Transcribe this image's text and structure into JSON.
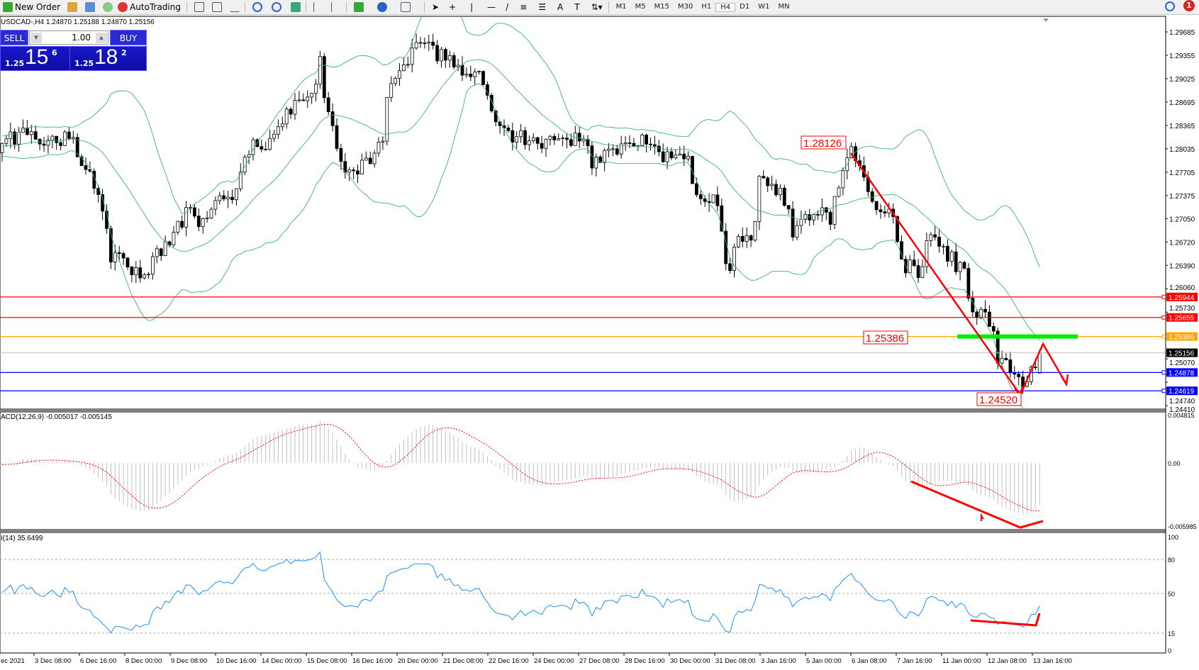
{
  "toolbar": {
    "new_order": "New Order",
    "autotrading": "AutoTrading",
    "timeframes": [
      "M1",
      "M5",
      "M15",
      "M30",
      "H1",
      "H4",
      "D1",
      "W1",
      "MN"
    ],
    "active_timeframe": "H4",
    "notification_count": "1"
  },
  "chart": {
    "info": "USDCAD-,H4  1.24870 1.25188 1.24870 1.25156",
    "symbol": "USDCAD-",
    "timeframe": "H4",
    "last_bar": {
      "open": 1.2487,
      "high": 1.25188,
      "low": 1.2487,
      "close": 1.25156
    },
    "price_axis": [
      "1.29685",
      "1.29355",
      "1.29025",
      "1.28695",
      "1.28365",
      "1.28035",
      "1.27705",
      "1.27375",
      "1.27050",
      "1.26720",
      "1.26390",
      "1.26060",
      "1.25730",
      "1.25070",
      "1.24740",
      "1.24410"
    ],
    "hlines": [
      {
        "price": 1.25944,
        "label": "1.25944",
        "color": "#ff0000"
      },
      {
        "price": 1.25655,
        "label": "1.25655",
        "color": "#ff0000"
      },
      {
        "price": 1.25386,
        "label": "1.25386",
        "color": "#ffa500"
      },
      {
        "price": 1.25156,
        "label": "1.25156",
        "color": "#c0c0c0",
        "bid": true
      },
      {
        "price": 1.24878,
        "label": "1.24878",
        "color": "#0000ff"
      },
      {
        "price": 1.24619,
        "label": "1.24619",
        "color": "#0000ff"
      }
    ],
    "annotations": [
      "1.28126",
      "1.25386",
      "1.24520"
    ],
    "price_path": [
      [
        0,
        1.28088
      ],
      [
        4,
        1.2825
      ],
      [
        10,
        1.28142
      ],
      [
        16,
        1.28196
      ],
      [
        20,
        1.27819
      ],
      [
        25,
        1.2701
      ],
      [
        26,
        1.2647
      ],
      [
        30,
        1.26416
      ],
      [
        34,
        1.26255
      ],
      [
        37,
        1.26524
      ],
      [
        41,
        1.26794
      ],
      [
        44,
        1.27118
      ],
      [
        49,
        1.2701
      ],
      [
        51,
        1.27279
      ],
      [
        55,
        1.27225
      ],
      [
        58,
        1.27981
      ],
      [
        63,
        1.28142
      ],
      [
        68,
        1.2852
      ],
      [
        73,
        1.28736
      ],
      [
        76,
        1.29221
      ],
      [
        78,
        1.2852
      ],
      [
        80,
        1.27981
      ],
      [
        83,
        1.27711
      ],
      [
        88,
        1.27927
      ],
      [
        91,
        1.28196
      ],
      [
        92,
        1.28736
      ],
      [
        95,
        1.29059
      ],
      [
        100,
        1.29545
      ],
      [
        101,
        1.29491
      ],
      [
        105,
        1.29329
      ],
      [
        111,
        1.29167
      ],
      [
        115,
        1.29059
      ],
      [
        117,
        1.28466
      ],
      [
        122,
        1.28196
      ],
      [
        128,
        1.28142
      ],
      [
        133,
        1.28088
      ],
      [
        139,
        1.2825
      ],
      [
        141,
        1.27873
      ],
      [
        146,
        1.27927
      ],
      [
        150,
        1.28142
      ],
      [
        155,
        1.28196
      ],
      [
        157,
        1.27981
      ],
      [
        161,
        1.27927
      ],
      [
        164,
        1.27873
      ],
      [
        166,
        1.27441
      ],
      [
        171,
        1.27333
      ],
      [
        173,
        1.26309
      ],
      [
        176,
        1.26686
      ],
      [
        180,
        1.26902
      ],
      [
        181,
        1.27711
      ],
      [
        185,
        1.27495
      ],
      [
        188,
        1.27279
      ],
      [
        189,
        1.26794
      ],
      [
        192,
        1.27064
      ],
      [
        195,
        1.27172
      ],
      [
        198,
        1.27064
      ],
      [
        201,
        1.27711
      ],
      [
        203,
        1.28035
      ],
      [
        206,
        1.27549
      ],
      [
        208,
        1.27225
      ],
      [
        213,
        1.27172
      ],
      [
        215,
        1.26416
      ],
      [
        219,
        1.26309
      ],
      [
        222,
        1.26794
      ],
      [
        227,
        1.2647
      ],
      [
        230,
        1.26255
      ],
      [
        231,
        1.25823
      ],
      [
        236,
        1.25607
      ],
      [
        238,
        1.25122
      ],
      [
        240,
        1.2496
      ],
      [
        244,
        1.24744
      ],
      [
        246,
        1.24852
      ],
      [
        248,
        1.25156
      ]
    ],
    "bollinger_color": "#3cb371"
  },
  "macd": {
    "label": "ACD(12,26,9) -0.005017 -0.005145",
    "axis": [
      "0.004815",
      "0.00",
      "-0.005985"
    ],
    "signal_color": "#ff0000",
    "hist_color": "#c0c0c0"
  },
  "rsi": {
    "label": "I(14) 35.6499",
    "axis": [
      "100",
      "80",
      "50",
      "15",
      "0"
    ],
    "levels": [
      80,
      50,
      15
    ],
    "color": "#1e90ff"
  },
  "time_axis": [
    "ec 2021",
    "3 Dec 08:00",
    "6 Dec 16:00",
    "8 Dec 00:00",
    "9 Dec 08:00",
    "10 Dec 16:00",
    "14 Dec 00:00",
    "15 Dec 08:00",
    "16 Dec 16:00",
    "20 Dec 00:00",
    "21 Dec 08:00",
    "22 Dec 16:00",
    "24 Dec 00:00",
    "27 Dec 08:00",
    "28 Dec 16:00",
    "30 Dec 00:00",
    "31 Dec 08:00",
    "3 Jan 16:00",
    "5 Jan 00:00",
    "6 Jan 08:00",
    "7 Jan 16:00",
    "11 Jan 00:00",
    "12 Jan 08:00",
    "13 Jan 16:00"
  ],
  "trade_panel": {
    "sell": "SELL",
    "buy": "BUY",
    "lot": "1.00",
    "bid_small": "1.25",
    "bid_big": "15",
    "bid_pip": "6",
    "ask_small": "1.25",
    "ask_big": "18",
    "ask_pip": "2"
  }
}
